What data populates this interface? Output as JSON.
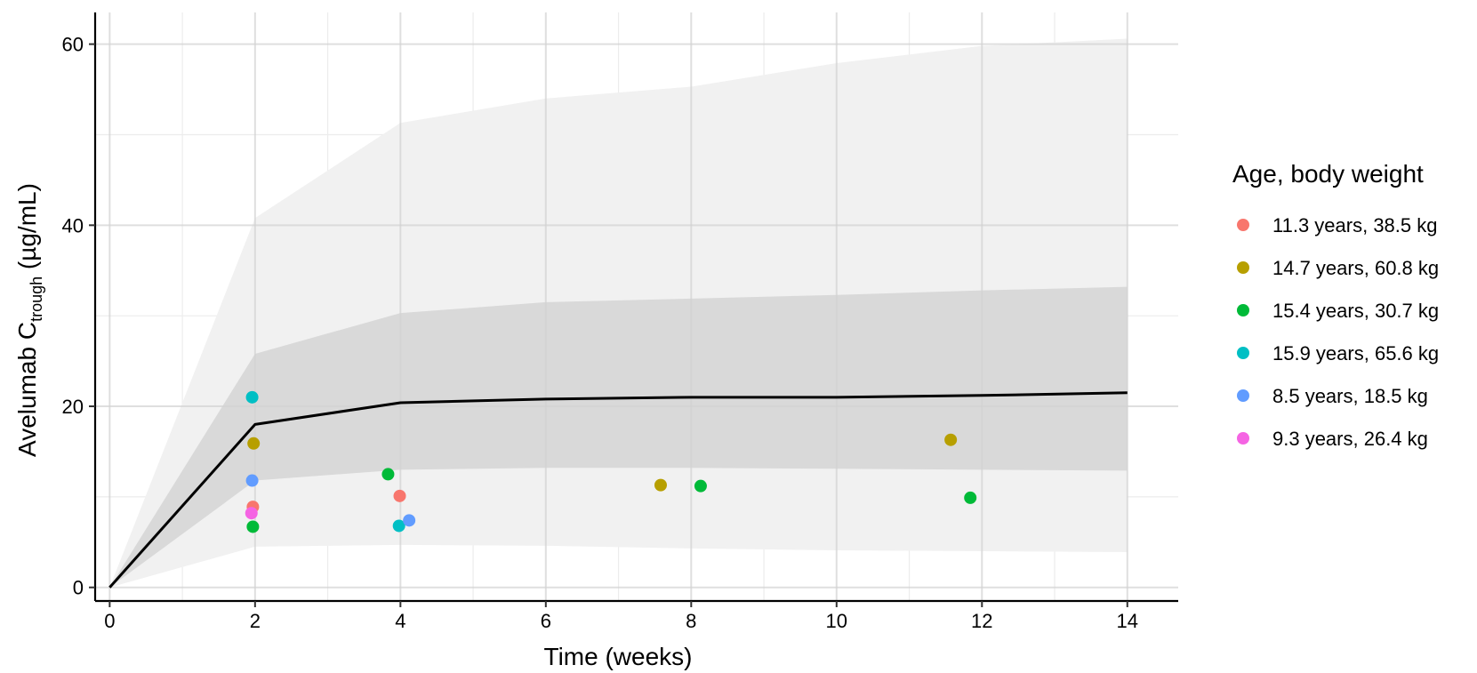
{
  "chart_data": {
    "type": "scatter",
    "title": "",
    "xlabel": "Time (weeks)",
    "ylabel": {
      "prefix": "Avelumab C",
      "subscript": "trough",
      "suffix": " (µg/mL)"
    },
    "xlim": [
      -0.2,
      14.7
    ],
    "ylim": [
      -1.5,
      63.5
    ],
    "x_ticks": [
      0,
      2,
      4,
      6,
      8,
      10,
      12,
      14
    ],
    "y_ticks": [
      0,
      20,
      40,
      60
    ],
    "grid": true,
    "legend": {
      "title": "Age, body weight",
      "position": "right"
    },
    "bands": [
      {
        "name": "outer",
        "color": "#f1f1f1",
        "x": [
          0,
          2,
          4,
          6,
          8,
          10,
          12,
          14
        ],
        "upper": [
          0,
          40.8,
          51.3,
          54.0,
          55.3,
          57.9,
          59.8,
          60.6
        ],
        "lower": [
          0,
          4.5,
          4.7,
          4.6,
          4.3,
          4.1,
          4.0,
          3.9
        ]
      },
      {
        "name": "inner",
        "color": "#d9d9d9",
        "x": [
          0,
          2,
          4,
          6,
          8,
          10,
          12,
          14
        ],
        "upper": [
          0,
          25.8,
          30.3,
          31.5,
          31.9,
          32.3,
          32.8,
          33.2
        ],
        "lower": [
          0,
          11.8,
          13.0,
          13.2,
          13.2,
          13.1,
          13.0,
          12.9
        ]
      }
    ],
    "median_line": {
      "color": "#000000",
      "x": [
        0,
        2,
        4,
        6,
        8,
        10,
        12,
        14
      ],
      "y": [
        0,
        18.0,
        20.4,
        20.8,
        21.0,
        21.0,
        21.2,
        21.5
      ]
    },
    "series": [
      {
        "name": "11.3 years, 38.5 kg",
        "color": "#F8766D",
        "points": [
          [
            1.97,
            8.9
          ],
          [
            3.99,
            10.1
          ]
        ]
      },
      {
        "name": "14.7 years, 60.8 kg",
        "color": "#B79F00",
        "points": [
          [
            1.98,
            15.9
          ],
          [
            7.58,
            11.3
          ],
          [
            11.57,
            16.3
          ]
        ]
      },
      {
        "name": "15.4 years, 30.7 kg",
        "color": "#00BA38",
        "points": [
          [
            1.97,
            6.7
          ],
          [
            3.83,
            12.5
          ],
          [
            8.13,
            11.2
          ],
          [
            11.84,
            9.9
          ]
        ]
      },
      {
        "name": "15.9 years, 65.6 kg",
        "color": "#00BFC4",
        "points": [
          [
            1.96,
            21.0
          ],
          [
            3.98,
            6.8
          ]
        ]
      },
      {
        "name": "8.5 years, 18.5 kg",
        "color": "#619CFF",
        "points": [
          [
            1.96,
            11.8
          ],
          [
            4.12,
            7.4
          ]
        ]
      },
      {
        "name": "9.3 years, 26.4 kg",
        "color": "#F564E3",
        "points": [
          [
            1.95,
            8.2
          ]
        ]
      }
    ]
  }
}
